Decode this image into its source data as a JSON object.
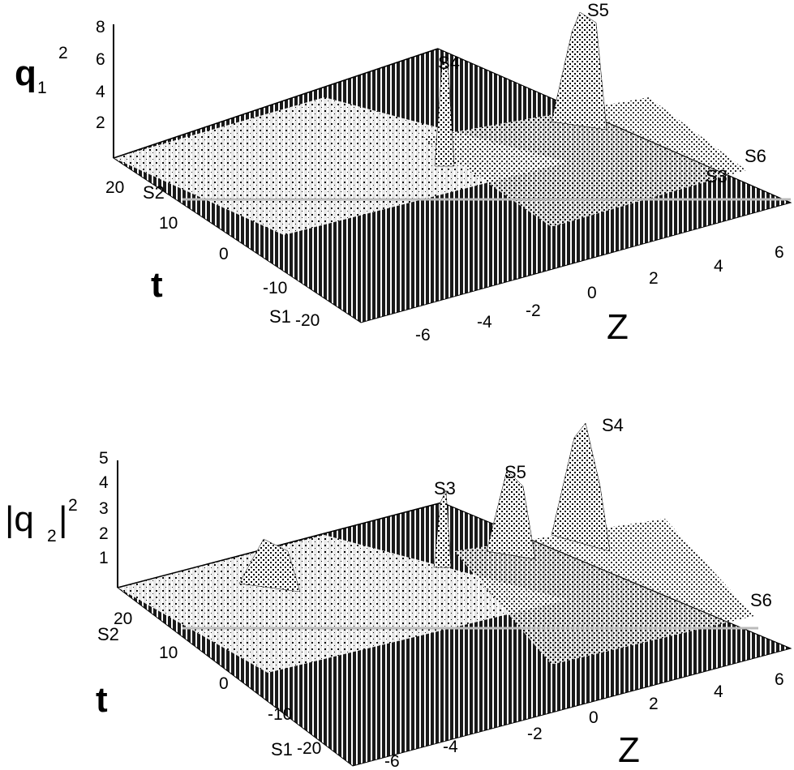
{
  "chart_data": [
    {
      "type": "surface",
      "zlabel_text": "q",
      "zlabel_sub": "1",
      "zlabel_sup": "2",
      "t_label": "t",
      "z_label": "Z",
      "height_ticks": [
        "2",
        "4",
        "6",
        "8"
      ],
      "t_ticks": [
        "20",
        "10",
        "0",
        "-10",
        "-20"
      ],
      "z_ticks": [
        "6",
        "4",
        "2",
        "0",
        "-2",
        "-4",
        "-6"
      ],
      "markers": [
        {
          "label": "S1",
          "where": "front-left corner"
        },
        {
          "label": "S2",
          "where": "back-left"
        },
        {
          "label": "S3",
          "where": "front-right"
        },
        {
          "label": "S4",
          "where": "center peak"
        },
        {
          "label": "S5",
          "where": "tallest peak"
        },
        {
          "label": "S6",
          "where": "far right"
        }
      ],
      "peaks": [
        {
          "name": "S4",
          "z": 0,
          "t": 5,
          "height": 5
        },
        {
          "name": "S5",
          "z": -1,
          "t": 18,
          "height": 8
        }
      ],
      "grid": true,
      "colormap": "grayscale mesh"
    },
    {
      "type": "surface",
      "zlabel_text": "|q",
      "zlabel_sub": "2",
      "zlabel_sup": "2",
      "t_label": "t",
      "z_label": "Z",
      "height_ticks": [
        "1",
        "2",
        "3",
        "4",
        "5"
      ],
      "t_ticks": [
        "20",
        "10",
        "0",
        "-10",
        "-20"
      ],
      "z_ticks": [
        "6",
        "4",
        "2",
        "0",
        "-2",
        "-4",
        "-6"
      ],
      "markers": [
        {
          "label": "S1",
          "where": "front-left"
        },
        {
          "label": "S2",
          "where": "back-left"
        },
        {
          "label": "S3",
          "where": "back-center"
        },
        {
          "label": "S4",
          "where": "tallest peak"
        },
        {
          "label": "S5",
          "where": "center peak"
        },
        {
          "label": "S6",
          "where": "far right"
        }
      ],
      "peaks": [
        {
          "name": "S4",
          "z": -1,
          "t": 18,
          "height": 5
        },
        {
          "name": "S5",
          "z": 0,
          "t": 5,
          "height": 3
        }
      ],
      "grid": true,
      "colormap": "grayscale mesh"
    }
  ]
}
